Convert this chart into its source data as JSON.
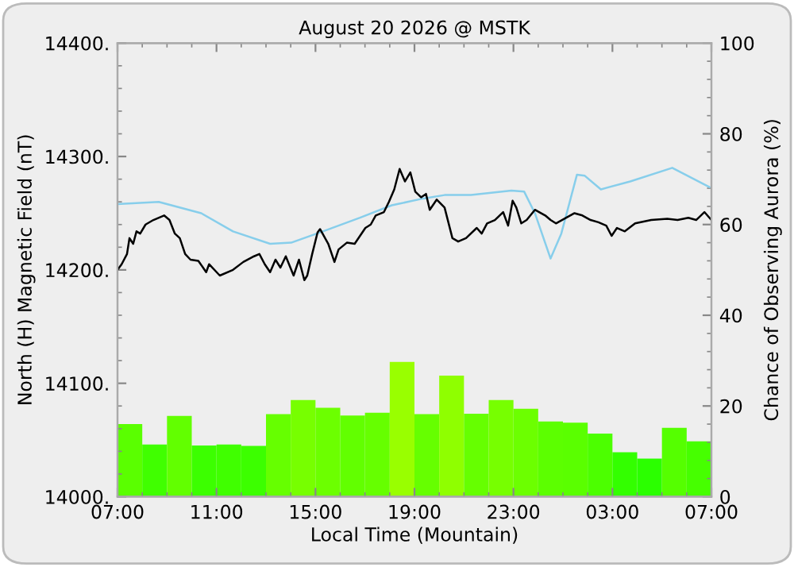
{
  "chart_data": {
    "type": "line",
    "title": "August 20 2026 @ MSTK",
    "xlabel": "Local Time (Mountain)",
    "ylabel": "North (H) Magnetic Field (nT)",
    "y2label": "Chance of Observing Aurora (%)",
    "xlim": [
      "2026-08-20T07:00",
      "2026-08-21T07:00"
    ],
    "xticks": [
      {
        "value": "2026-08-20T07:00",
        "label": "07:00"
      },
      {
        "value": "2026-08-20T11:00",
        "label": "11:00"
      },
      {
        "value": "2026-08-20T15:00",
        "label": "15:00"
      },
      {
        "value": "2026-08-20T19:00",
        "label": "19:00"
      },
      {
        "value": "2026-08-20T23:00",
        "label": "23:00"
      },
      {
        "value": "2026-08-21T03:00",
        "label": "03:00"
      },
      {
        "value": "2026-08-21T07:00",
        "label": "07:00"
      }
    ],
    "ylim": [
      14000,
      14400
    ],
    "yticks": [
      {
        "value": 14000,
        "label": "14000."
      },
      {
        "value": 14100,
        "label": "14100."
      },
      {
        "value": 14200,
        "label": "14200."
      },
      {
        "value": 14300,
        "label": "14300."
      },
      {
        "value": 14400,
        "label": "14400."
      }
    ],
    "y2lim": [
      0,
      100
    ],
    "y2ticks": [
      0,
      20,
      40,
      60,
      80,
      100
    ],
    "series": [
      {
        "type": "bar",
        "axis": "y2",
        "x": [
          "2026-08-20T07:30",
          "2026-08-20T08:30",
          "2026-08-20T09:30",
          "2026-08-20T10:30",
          "2026-08-20T11:30",
          "2026-08-20T12:30",
          "2026-08-20T13:30",
          "2026-08-20T14:30",
          "2026-08-20T15:30",
          "2026-08-20T16:30",
          "2026-08-20T17:30",
          "2026-08-20T18:30",
          "2026-08-20T19:30",
          "2026-08-20T20:30",
          "2026-08-20T21:30",
          "2026-08-20T22:30",
          "2026-08-20T23:30",
          "2026-08-21T00:30",
          "2026-08-21T01:30",
          "2026-08-21T02:30",
          "2026-08-21T03:30",
          "2026-08-21T04:30",
          "2026-08-21T05:30",
          "2026-08-21T06:30"
        ],
        "values": [
          16.0,
          11.5,
          17.8,
          11.3,
          11.5,
          11.2,
          18.2,
          21.3,
          19.6,
          17.9,
          18.5,
          29.7,
          18.2,
          26.7,
          18.3,
          21.3,
          19.4,
          16.6,
          16.3,
          13.9,
          9.8,
          8.4,
          15.2,
          12.2
        ],
        "colors": [
          "#5aff00",
          "#40ff00",
          "#62ff00",
          "#3cff00",
          "#40ff00",
          "#3cff00",
          "#66ff00",
          "#77ff00",
          "#6cff00",
          "#62ff00",
          "#66ff00",
          "#99ff00",
          "#66ff00",
          "#8fff00",
          "#66ff00",
          "#77ff00",
          "#6cff00",
          "#5cff00",
          "#5aff00",
          "#4cff00",
          "#33ff00",
          "#2bff00",
          "#55ff00",
          "#46ff00"
        ]
      },
      {
        "color": "#87ceeb",
        "x": [
          "2026-08-20T07:00",
          "2026-08-20T08:40",
          "2026-08-20T10:23",
          "2026-08-20T11:40",
          "2026-08-20T13:10",
          "2026-08-20T14:01",
          "2026-08-20T15:18",
          "2026-08-20T16:48",
          "2026-08-20T18:05",
          "2026-08-20T19:22",
          "2026-08-20T20:13",
          "2026-08-20T21:17",
          "2026-08-20T22:55",
          "2026-08-20T23:26",
          "2026-08-20T23:52",
          "2026-08-21T00:30",
          "2026-08-21T00:56",
          "2026-08-21T01:34",
          "2026-08-21T01:53",
          "2026-08-21T02:32",
          "2026-08-21T03:43",
          "2026-08-21T05:25",
          "2026-08-21T06:55"
        ],
        "values": [
          14258,
          14260,
          14250,
          14234,
          14223,
          14224,
          14234,
          14246,
          14257,
          14263,
          14266,
          14266,
          14270,
          14269,
          14250,
          14210,
          14232,
          14284,
          14283,
          14271,
          14278,
          14290,
          14273
        ]
      },
      {
        "color": "#000000",
        "x": [
          "2026-08-20T07:00",
          "2026-08-20T07:10",
          "2026-08-20T07:23",
          "2026-08-20T07:29",
          "2026-08-20T07:38",
          "2026-08-20T07:46",
          "2026-08-20T07:55",
          "2026-08-20T08:08",
          "2026-08-20T08:27",
          "2026-08-20T08:53",
          "2026-08-20T09:06",
          "2026-08-20T09:19",
          "2026-08-20T09:31",
          "2026-08-20T09:44",
          "2026-08-20T09:57",
          "2026-08-20T10:16",
          "2026-08-20T10:35",
          "2026-08-20T10:42",
          "2026-08-20T11:08",
          "2026-08-20T11:40",
          "2026-08-20T12:05",
          "2026-08-20T12:31",
          "2026-08-20T12:44",
          "2026-08-20T12:57",
          "2026-08-20T13:10",
          "2026-08-20T13:23",
          "2026-08-20T13:35",
          "2026-08-20T13:48",
          "2026-08-20T14:07",
          "2026-08-20T14:20",
          "2026-08-20T14:33",
          "2026-08-20T14:40",
          "2026-08-20T14:52",
          "2026-08-20T15:05",
          "2026-08-20T15:11",
          "2026-08-20T15:31",
          "2026-08-20T15:46",
          "2026-08-20T15:56",
          "2026-08-20T16:16",
          "2026-08-20T16:35",
          "2026-08-20T16:48",
          "2026-08-20T17:01",
          "2026-08-20T17:14",
          "2026-08-20T17:26",
          "2026-08-20T17:46",
          "2026-08-20T17:58",
          "2026-08-20T18:11",
          "2026-08-20T18:24",
          "2026-08-20T18:37",
          "2026-08-20T18:50",
          "2026-08-20T19:02",
          "2026-08-20T19:16",
          "2026-08-20T19:28",
          "2026-08-20T19:37",
          "2026-08-20T19:54",
          "2026-08-20T20:13",
          "2026-08-20T20:32",
          "2026-08-20T20:46",
          "2026-08-20T21:05",
          "2026-08-20T21:31",
          "2026-08-20T21:43",
          "2026-08-20T21:56",
          "2026-08-20T22:15",
          "2026-08-20T22:35",
          "2026-08-20T22:47",
          "2026-08-20T22:58",
          "2026-08-20T23:07",
          "2026-08-20T23:19",
          "2026-08-20T23:32",
          "2026-08-20T23:52",
          "2026-08-21T00:17",
          "2026-08-21T00:30",
          "2026-08-21T00:43",
          "2026-08-21T01:08",
          "2026-08-21T01:28",
          "2026-08-21T01:47",
          "2026-08-21T02:07",
          "2026-08-21T02:26",
          "2026-08-21T02:45",
          "2026-08-21T02:58",
          "2026-08-21T03:11",
          "2026-08-21T03:30",
          "2026-08-21T03:55",
          "2026-08-21T04:34",
          "2026-08-21T05:13",
          "2026-08-21T05:38",
          "2026-08-21T06:04",
          "2026-08-21T06:23",
          "2026-08-21T06:43",
          "2026-08-21T07:00"
        ],
        "values": [
          14200,
          14205,
          14214,
          14228,
          14223,
          14234,
          14232,
          14240,
          14244,
          14248,
          14244,
          14232,
          14228,
          14214,
          14209,
          14208,
          14198,
          14205,
          14195,
          14200,
          14207,
          14212,
          14214,
          14205,
          14198,
          14209,
          14202,
          14212,
          14195,
          14209,
          14191,
          14195,
          14214,
          14233,
          14236,
          14223,
          14207,
          14218,
          14224,
          14223,
          14230,
          14237,
          14240,
          14248,
          14251,
          14260,
          14271,
          14289,
          14278,
          14286,
          14269,
          14264,
          14267,
          14253,
          14262,
          14255,
          14228,
          14225,
          14228,
          14237,
          14232,
          14241,
          14244,
          14251,
          14239,
          14261,
          14255,
          14241,
          14244,
          14253,
          14248,
          14244,
          14241,
          14246,
          14250,
          14248,
          14244,
          14242,
          14239,
          14230,
          14237,
          14234,
          14241,
          14244,
          14245,
          14244,
          14246,
          14244,
          14251,
          14244
        ]
      }
    ]
  }
}
